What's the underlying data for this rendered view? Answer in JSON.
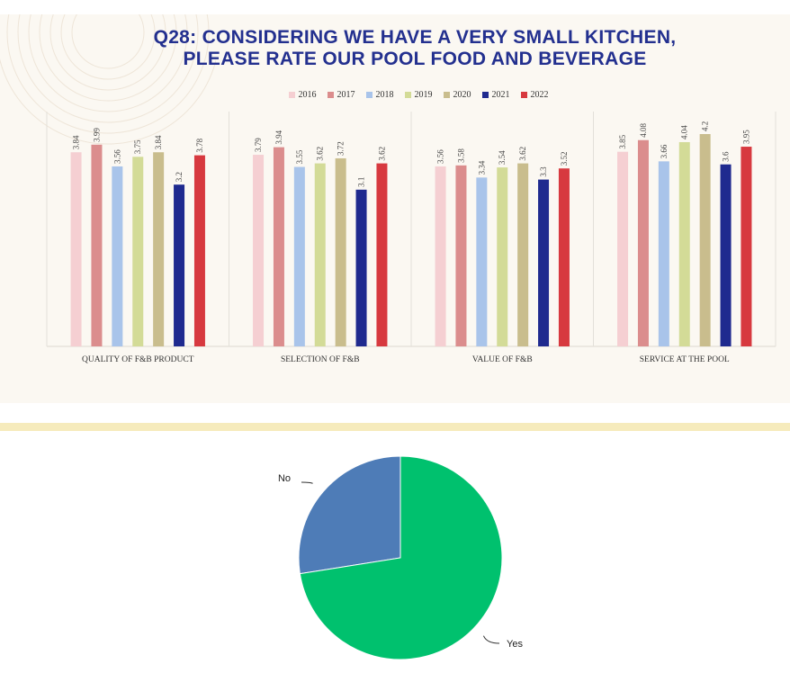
{
  "chart_data": [
    {
      "type": "bar",
      "title_lines": [
        "Q28: CONSIDERING WE HAVE A VERY SMALL KITCHEN,",
        "PLEASE RATE OUR POOL FOOD AND BEVERAGE"
      ],
      "categories": [
        "QUALITY OF F&B PRODUCT",
        "SELECTION OF F&B",
        "VALUE OF F&B",
        "SERVICE AT THE POOL"
      ],
      "series": [
        {
          "name": "2016",
          "color": "#f5cfd2",
          "values": [
            3.84,
            3.79,
            3.56,
            3.85
          ]
        },
        {
          "name": "2017",
          "color": "#db8d8d",
          "values": [
            3.99,
            3.94,
            3.58,
            4.08
          ]
        },
        {
          "name": "2018",
          "color": "#a9c4ea",
          "values": [
            3.56,
            3.55,
            3.34,
            3.66
          ]
        },
        {
          "name": "2019",
          "color": "#d3db97",
          "values": [
            3.75,
            3.62,
            3.54,
            4.04
          ]
        },
        {
          "name": "2020",
          "color": "#c9bd8d",
          "values": [
            3.84,
            3.72,
            3.62,
            4.2
          ]
        },
        {
          "name": "2021",
          "color": "#1f2a8f",
          "values": [
            3.2,
            3.1,
            3.3,
            3.6
          ]
        },
        {
          "name": "2022",
          "color": "#d7393f",
          "values": [
            3.78,
            3.62,
            3.52,
            3.95
          ]
        }
      ],
      "ylim": [
        0,
        4.5
      ],
      "legend_position": "top-center",
      "grid": false
    },
    {
      "type": "pie",
      "labels": [
        "No",
        "Yes"
      ],
      "values": [
        27.5,
        72.5
      ],
      "colors": [
        "#4e7cb7",
        "#00c16e"
      ]
    }
  ]
}
